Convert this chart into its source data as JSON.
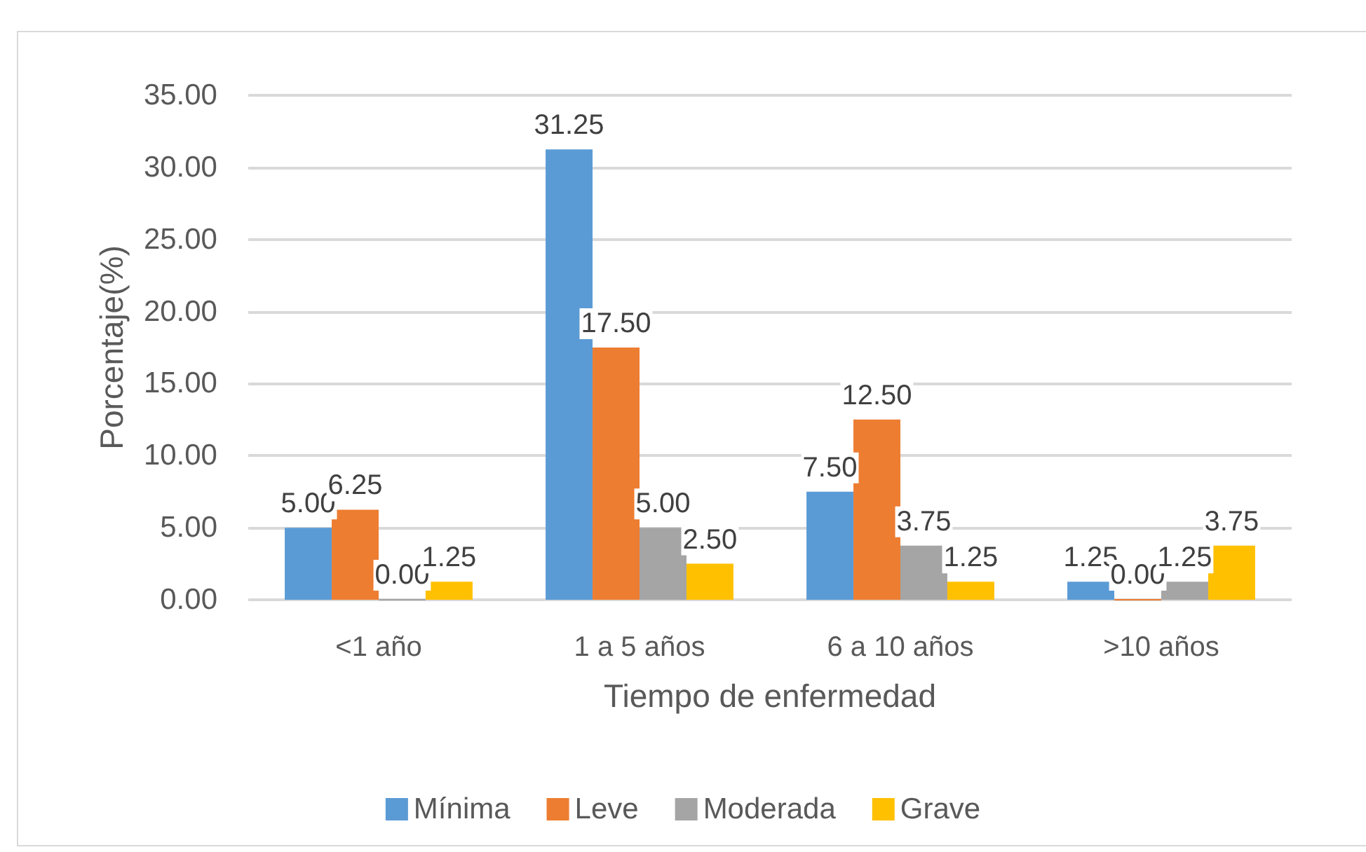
{
  "chart_data": {
    "type": "bar",
    "xlabel": "Tiempo de enfermedad",
    "ylabel": "Porcentaje(%)",
    "categories": [
      "<1 año",
      "1 a 5 años",
      "6 a 10 años",
      ">10 años"
    ],
    "series": [
      {
        "name": "Mínima",
        "color": "#5b9bd5",
        "values": [
          5,
          31.25,
          7.5,
          1.25
        ],
        "value_labels": [
          "5.00",
          "31.25",
          "7.50",
          "1.25"
        ]
      },
      {
        "name": "Leve",
        "color": "#ed7d31",
        "values": [
          6.25,
          17.5,
          12.5,
          0
        ],
        "value_labels": [
          "6.25",
          "17.50",
          "12.50",
          "0.00"
        ]
      },
      {
        "name": "Moderada",
        "color": "#a5a5a5",
        "values": [
          0,
          5,
          3.75,
          1.25
        ],
        "value_labels": [
          "0.00",
          "5.00",
          "3.75",
          "1.25"
        ]
      },
      {
        "name": "Grave",
        "color": "#ffc000",
        "values": [
          1.25,
          2.5,
          1.25,
          3.75
        ],
        "value_labels": [
          "1.25",
          "2.50",
          "1.25",
          "3.75"
        ]
      }
    ],
    "ylim": [
      0,
      35
    ],
    "yticks": [
      {
        "value": 0,
        "label": "0.00"
      },
      {
        "value": 5,
        "label": "5.00"
      },
      {
        "value": 10,
        "label": "10.00"
      },
      {
        "value": 15,
        "label": "15.00"
      },
      {
        "value": 20,
        "label": "20.00"
      },
      {
        "value": 25,
        "label": "25.00"
      },
      {
        "value": 30,
        "label": "30.00"
      },
      {
        "value": 35,
        "label": "35.00"
      }
    ],
    "grid": "y",
    "legend": "bottom"
  }
}
